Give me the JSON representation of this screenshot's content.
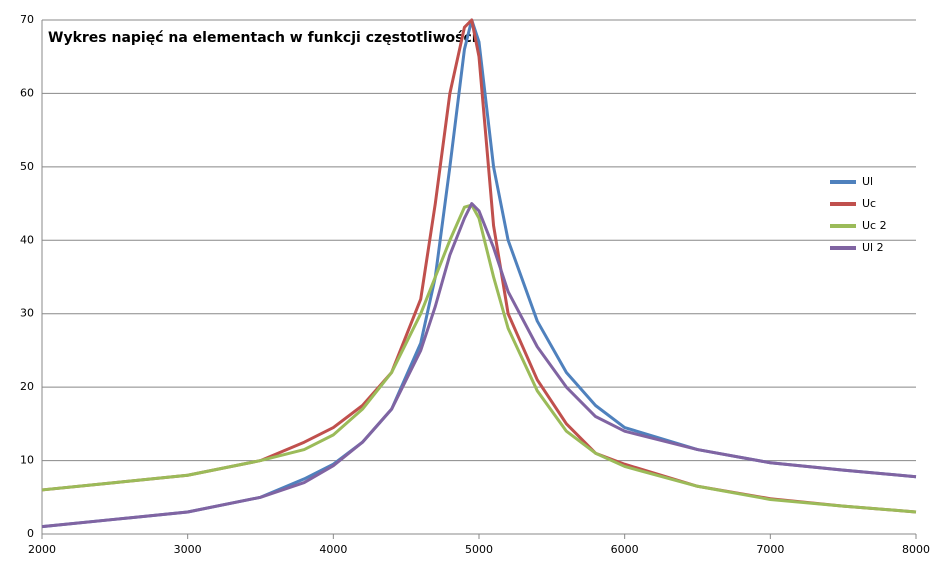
{
  "chart_data": {
    "type": "line",
    "title": "Wykres napięć na elementach w funkcji częstotliwości",
    "x": [
      2000,
      2500,
      3000,
      3500,
      3800,
      4000,
      4200,
      4400,
      4600,
      4700,
      4800,
      4900,
      4950,
      5000,
      5100,
      5200,
      5400,
      5600,
      5800,
      6000,
      6500,
      7000,
      7500,
      8000
    ],
    "series": [
      {
        "name": "Ul",
        "color": "#4f81bd",
        "values": [
          1,
          2,
          3,
          5,
          7.5,
          9.5,
          12.5,
          17,
          26,
          35,
          50,
          66,
          70,
          67,
          50,
          40,
          29,
          22,
          17.5,
          14.5,
          11.5,
          9.7,
          8.7,
          7.8
        ]
      },
      {
        "name": "Uc",
        "color": "#c0504d",
        "values": [
          6,
          7,
          8,
          10,
          12.5,
          14.5,
          17.5,
          22,
          32,
          45,
          60,
          69,
          70,
          65,
          42,
          30,
          21,
          15,
          11,
          9.5,
          6.5,
          4.8,
          3.8,
          3
        ]
      },
      {
        "name": "Uc 2",
        "color": "#9bbb59",
        "values": [
          6,
          7,
          8,
          10,
          11.5,
          13.5,
          17,
          22,
          30,
          35,
          40,
          44.5,
          44.8,
          43,
          35,
          28,
          19.5,
          14,
          11,
          9.2,
          6.5,
          4.7,
          3.8,
          3
        ]
      },
      {
        "name": "Ul 2",
        "color": "#8064a2",
        "values": [
          1,
          2,
          3,
          5,
          7,
          9.3,
          12.5,
          17,
          25,
          31,
          38,
          43,
          45,
          44,
          39,
          33,
          25.5,
          20,
          16,
          14,
          11.5,
          9.7,
          8.7,
          7.8
        ]
      }
    ],
    "xlim": [
      2000,
      8000
    ],
    "xticks": [
      2000,
      3000,
      4000,
      5000,
      6000,
      7000,
      8000
    ],
    "ylim": [
      0,
      70
    ],
    "yticks": [
      0,
      10,
      20,
      30,
      40,
      50,
      60,
      70
    ],
    "grid": true,
    "legend": "right"
  }
}
